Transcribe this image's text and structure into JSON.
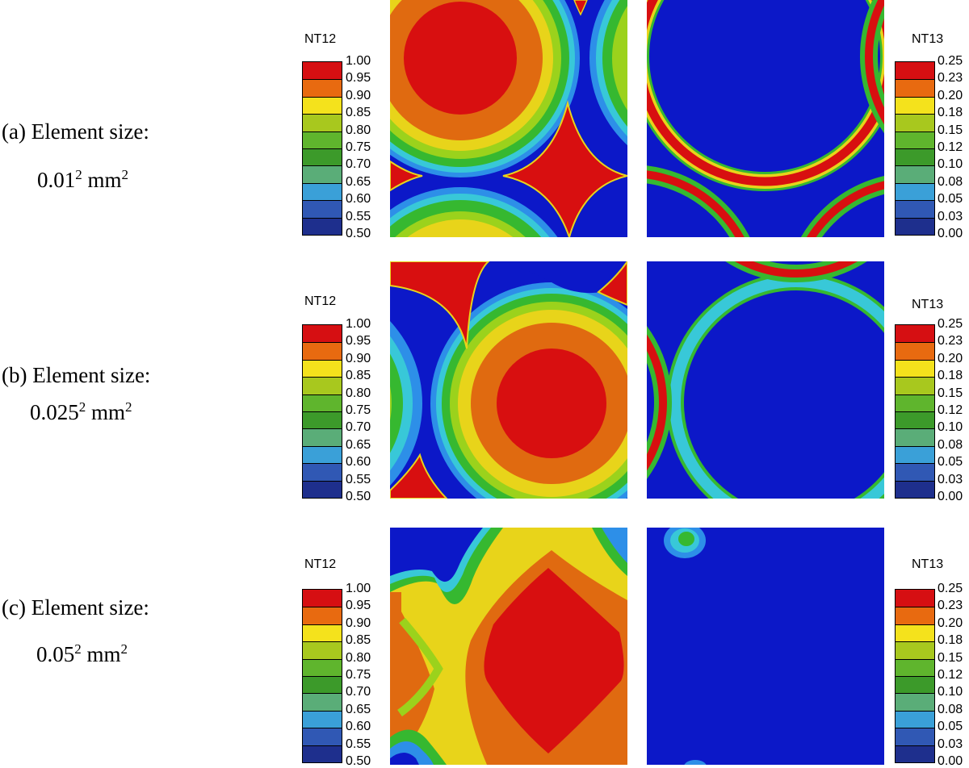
{
  "colorbar_colors": [
    "#1e2f8d",
    "#3058b4",
    "#3aa0d8",
    "#5aad78",
    "#3c9a2a",
    "#5fb52d",
    "#a8c81e",
    "#f4e21c",
    "#e86a10",
    "#d60f12"
  ],
  "field_colors": {
    "base": "#0c18c8",
    "light_blue": "#2d8fe8",
    "cyan": "#38c8d8",
    "teal": "#50c098",
    "green": "#36b830",
    "lime": "#9bd21c",
    "yellow": "#e8d41a",
    "orange": "#e06a10",
    "red": "#d80f10"
  },
  "rows": [
    {
      "label": "(a) Element size:",
      "size_base": "0.01",
      "size_exp": "2",
      "size_unit": " mm",
      "unit_exp": "2",
      "legend_left": {
        "title": "NT12",
        "ticks": [
          "1.00",
          "0.95",
          "0.90",
          "0.85",
          "0.80",
          "0.75",
          "0.70",
          "0.65",
          "0.60",
          "0.55",
          "0.50"
        ]
      },
      "legend_right": {
        "title": "NT13",
        "ticks": [
          "0.25",
          "0.23",
          "0.20",
          "0.18",
          "0.15",
          "0.12",
          "0.10",
          "0.08",
          "0.05",
          "0.03",
          "0.00"
        ]
      }
    },
    {
      "label": "(b) Element size:",
      "size_base": "0.025",
      "size_exp": "2",
      "size_unit": " mm",
      "unit_exp": "2",
      "legend_left": {
        "title": "NT12",
        "ticks": [
          "1.00",
          "0.95",
          "0.90",
          "0.85",
          "0.80",
          "0.75",
          "0.70",
          "0.65",
          "0.60",
          "0.55",
          "0.50"
        ]
      },
      "legend_right": {
        "title": "NT13",
        "ticks": [
          "0.25",
          "0.23",
          "0.20",
          "0.18",
          "0.15",
          "0.12",
          "0.10",
          "0.08",
          "0.05",
          "0.03",
          "0.00"
        ]
      }
    },
    {
      "label": "(c) Element size:",
      "size_base": "0.05",
      "size_exp": "2",
      "size_unit": " mm",
      "unit_exp": "2",
      "legend_left": {
        "title": "NT12",
        "ticks": [
          "1.00",
          "0.95",
          "0.90",
          "0.85",
          "0.80",
          "0.75",
          "0.70",
          "0.65",
          "0.60",
          "0.55",
          "0.50"
        ]
      },
      "legend_right": {
        "title": "NT13",
        "ticks": [
          "0.25",
          "0.23",
          "0.20",
          "0.18",
          "0.15",
          "0.12",
          "0.10",
          "0.08",
          "0.05",
          "0.03",
          "0.00"
        ]
      }
    }
  ]
}
